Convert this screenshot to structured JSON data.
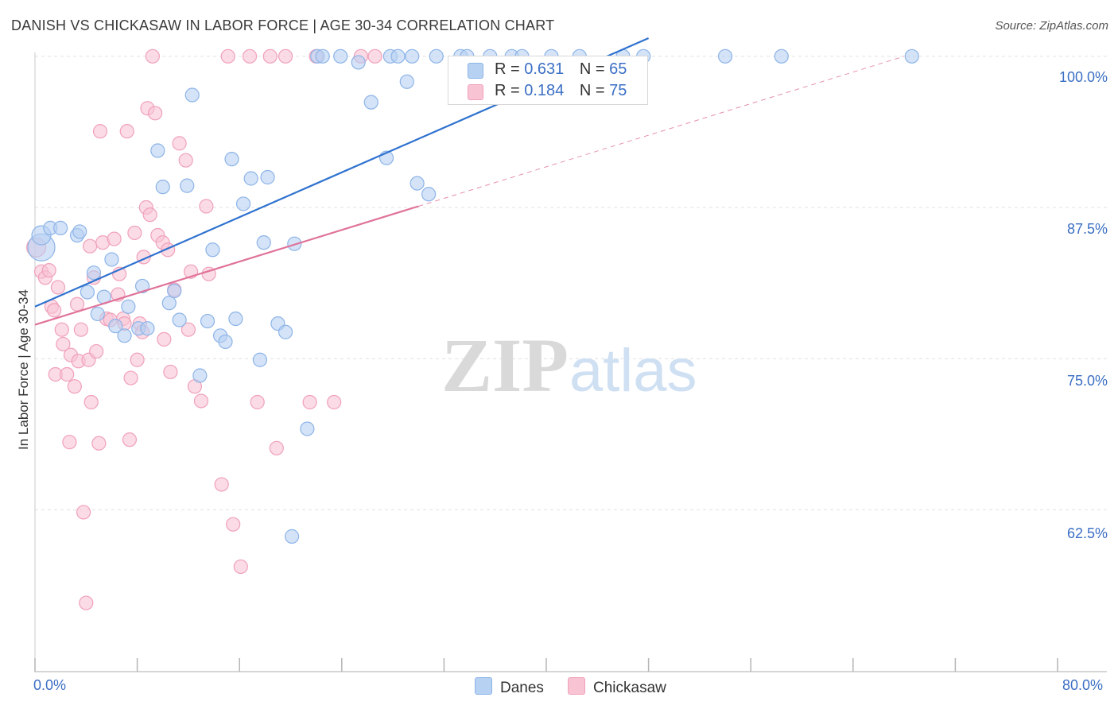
{
  "title": "DANISH VS CHICKASAW IN LABOR FORCE | AGE 30-34 CORRELATION CHART",
  "source": "Source: ZipAtlas.com",
  "watermark": {
    "zip": "ZIP",
    "atlas": "atlas"
  },
  "colors": {
    "danes_fill": "#b7d1f2",
    "danes_stroke": "#8db4e8",
    "danes_line": "#2f72cf",
    "chick_fill": "#f8c3d3",
    "chick_stroke": "#f0a1ba",
    "chick_line": "#e0739a",
    "grid": "#e1e1e1",
    "axis_text": "#3b6fc4"
  },
  "legend": {
    "danes": {
      "r_label": "R = ",
      "r_value": "0.631",
      "n_label": "N = ",
      "n_value": "65"
    },
    "chickasaw": {
      "r_label": "R = ",
      "r_value": "0.184",
      "n_label": "N = ",
      "n_value": "75"
    }
  },
  "chart_data": {
    "type": "scatter",
    "title": "DANISH VS CHICKASAW IN LABOR FORCE | AGE 30-34 CORRELATION CHART",
    "xlabel": "",
    "ylabel": "In Labor Force | Age 30-34",
    "xlim": [
      0,
      80
    ],
    "ylim": [
      50.5,
      101.5
    ],
    "x_tick_labels": [
      "0.0%",
      "80.0%"
    ],
    "y_ticks": [
      62.5,
      75.0,
      87.5,
      100.0
    ],
    "y_tick_labels": [
      "62.5%",
      "75.0%",
      "87.5%",
      "100.0%"
    ],
    "grid": true,
    "legend_position": "top-center",
    "series": [
      {
        "name": "Danes",
        "r": 0.631,
        "n": 65,
        "trend": {
          "x0": 0,
          "y0": 79.3,
          "x1": 48,
          "y1": 101.5
        },
        "points": [
          [
            0.5,
            84.2,
            "l"
          ],
          [
            0.5,
            85.2,
            "m"
          ],
          [
            1.2,
            85.8
          ],
          [
            2.0,
            85.8
          ],
          [
            3.3,
            85.2
          ],
          [
            3.5,
            85.5
          ],
          [
            4.1,
            80.5
          ],
          [
            4.6,
            82.1
          ],
          [
            4.9,
            78.7
          ],
          [
            5.4,
            80.1
          ],
          [
            6.0,
            83.2
          ],
          [
            6.3,
            77.7
          ],
          [
            7.0,
            76.9
          ],
          [
            7.3,
            79.3
          ],
          [
            8.1,
            77.5
          ],
          [
            8.4,
            81.0
          ],
          [
            8.8,
            77.5
          ],
          [
            9.6,
            92.2
          ],
          [
            10.0,
            89.2
          ],
          [
            10.5,
            79.6
          ],
          [
            10.9,
            80.6
          ],
          [
            11.3,
            78.2
          ],
          [
            11.9,
            89.3
          ],
          [
            12.3,
            96.8
          ],
          [
            12.9,
            73.6
          ],
          [
            13.5,
            78.1
          ],
          [
            13.9,
            84.0
          ],
          [
            14.5,
            76.9
          ],
          [
            14.9,
            76.4
          ],
          [
            15.4,
            91.5
          ],
          [
            15.7,
            78.3
          ],
          [
            16.3,
            87.8
          ],
          [
            16.9,
            89.9
          ],
          [
            17.6,
            74.9
          ],
          [
            17.9,
            84.6
          ],
          [
            18.2,
            90.0
          ],
          [
            19.0,
            77.9
          ],
          [
            19.6,
            77.2
          ],
          [
            20.1,
            60.3
          ],
          [
            20.3,
            84.5
          ],
          [
            21.3,
            69.2
          ],
          [
            22.1,
            100.0
          ],
          [
            22.5,
            100.0
          ],
          [
            23.9,
            100.0
          ],
          [
            25.3,
            99.5
          ],
          [
            26.3,
            96.2
          ],
          [
            27.5,
            91.6
          ],
          [
            27.8,
            100.0
          ],
          [
            28.4,
            100.0
          ],
          [
            29.1,
            97.9
          ],
          [
            29.5,
            100.0
          ],
          [
            29.9,
            89.5
          ],
          [
            30.8,
            88.6
          ],
          [
            31.4,
            100.0
          ],
          [
            33.3,
            100.0
          ],
          [
            33.8,
            100.0
          ],
          [
            35.6,
            100.0
          ],
          [
            37.3,
            100.0
          ],
          [
            38.1,
            100.0
          ],
          [
            40.4,
            100.0
          ],
          [
            42.6,
            100.0
          ],
          [
            46.0,
            100.0
          ],
          [
            47.6,
            100.0
          ],
          [
            54.0,
            100.0
          ],
          [
            58.4,
            100.0
          ],
          [
            68.6,
            100.0
          ]
        ]
      },
      {
        "name": "Chickasaw",
        "r": 0.184,
        "n": 75,
        "trend": {
          "x0": 0,
          "y0": 77.8,
          "x1": 30,
          "y1": 87.6
        },
        "trend_dashed": {
          "x0": 30,
          "y0": 87.6,
          "x1": 68,
          "y1": 100.0
        },
        "points": [
          [
            0.1,
            84.2,
            "m"
          ],
          [
            0.5,
            82.2
          ],
          [
            0.8,
            81.7
          ],
          [
            1.1,
            82.3
          ],
          [
            1.3,
            79.3
          ],
          [
            1.5,
            79.0
          ],
          [
            1.6,
            73.7
          ],
          [
            1.8,
            80.9
          ],
          [
            2.1,
            77.4
          ],
          [
            2.2,
            76.2
          ],
          [
            2.5,
            73.7
          ],
          [
            2.7,
            68.1
          ],
          [
            2.8,
            75.3
          ],
          [
            3.1,
            72.7
          ],
          [
            3.3,
            79.5
          ],
          [
            3.4,
            74.8
          ],
          [
            3.6,
            77.4
          ],
          [
            3.8,
            62.3
          ],
          [
            4.0,
            54.8
          ],
          [
            4.2,
            74.9
          ],
          [
            4.3,
            84.3
          ],
          [
            4.4,
            71.4
          ],
          [
            4.6,
            81.7
          ],
          [
            4.8,
            75.6
          ],
          [
            5.0,
            68.0
          ],
          [
            5.1,
            93.8
          ],
          [
            5.3,
            84.6
          ],
          [
            5.6,
            78.3
          ],
          [
            5.9,
            78.2
          ],
          [
            6.2,
            84.9
          ],
          [
            6.5,
            80.3
          ],
          [
            6.6,
            82.0
          ],
          [
            6.9,
            78.3
          ],
          [
            7.0,
            77.9
          ],
          [
            7.2,
            93.8
          ],
          [
            7.4,
            68.3
          ],
          [
            7.5,
            73.4
          ],
          [
            7.8,
            85.4
          ],
          [
            8.0,
            74.9
          ],
          [
            8.2,
            77.9
          ],
          [
            8.4,
            77.2
          ],
          [
            8.5,
            83.4
          ],
          [
            8.7,
            87.5
          ],
          [
            8.8,
            95.7
          ],
          [
            9.0,
            86.9
          ],
          [
            9.2,
            100.0
          ],
          [
            9.4,
            95.3
          ],
          [
            9.6,
            85.2
          ],
          [
            10.0,
            84.6
          ],
          [
            10.1,
            76.6
          ],
          [
            10.4,
            84.0
          ],
          [
            10.6,
            73.9
          ],
          [
            10.9,
            80.7
          ],
          [
            11.3,
            92.8
          ],
          [
            11.8,
            91.4
          ],
          [
            12.0,
            77.4
          ],
          [
            12.2,
            82.2
          ],
          [
            12.5,
            72.7
          ],
          [
            13.0,
            71.5
          ],
          [
            13.4,
            87.6
          ],
          [
            13.6,
            82.0
          ],
          [
            14.6,
            64.6
          ],
          [
            15.1,
            100.0
          ],
          [
            15.5,
            61.3
          ],
          [
            16.1,
            57.8
          ],
          [
            16.8,
            100.0
          ],
          [
            17.4,
            71.4
          ],
          [
            18.4,
            100.0
          ],
          [
            18.9,
            67.6
          ],
          [
            19.6,
            100.0
          ],
          [
            21.5,
            71.4
          ],
          [
            22.0,
            100.0
          ],
          [
            23.4,
            71.4
          ],
          [
            25.5,
            100.0
          ],
          [
            26.6,
            100.0
          ]
        ]
      }
    ]
  },
  "bottom_legend": {
    "danes": "Danes",
    "chickasaw": "Chickasaw"
  }
}
